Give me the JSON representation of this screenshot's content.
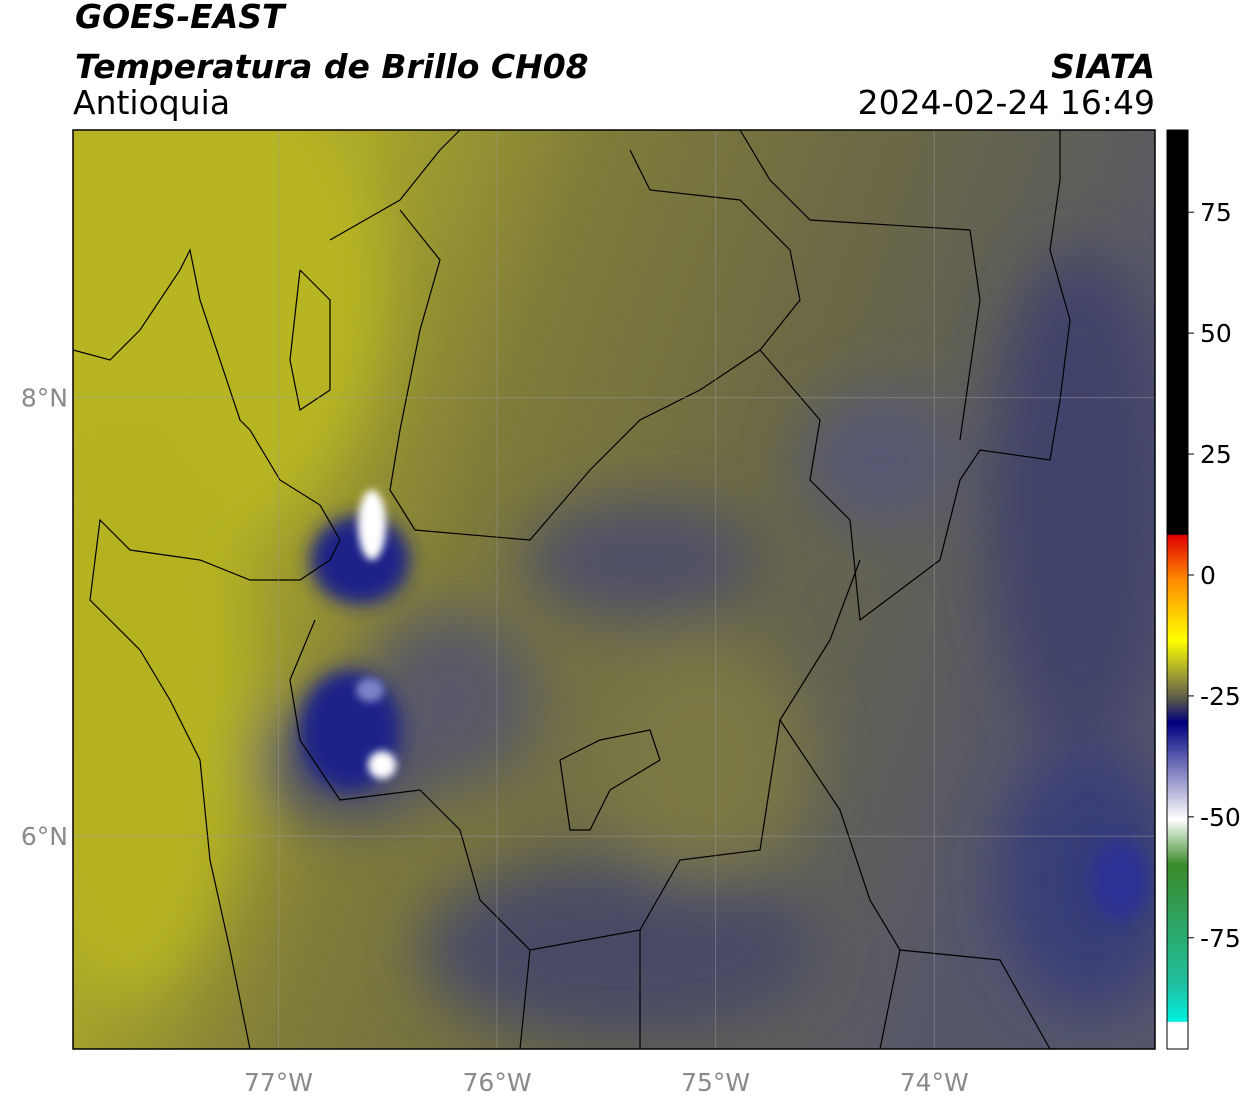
{
  "header": {
    "title": "GOES-EAST",
    "subtitle": "Temperatura de Brillo CH08",
    "region": "Antioquia",
    "source": "SIATA",
    "datetime": "2024-02-24 16:49"
  },
  "map": {
    "lon_range": [
      -77.94,
      -72.99
    ],
    "lat_range": [
      5.03,
      9.22
    ],
    "lon_ticks": [
      {
        "value": -77,
        "label": "77°W"
      },
      {
        "value": -76,
        "label": "76°W"
      },
      {
        "value": -75,
        "label": "75°W"
      },
      {
        "value": -74,
        "label": "74°W"
      }
    ],
    "lat_ticks": [
      {
        "value": 8,
        "label": "8°N"
      },
      {
        "value": 6,
        "label": "6°N"
      }
    ]
  },
  "colorbar": {
    "range": [
      -98,
      92
    ],
    "ticks": [
      75,
      50,
      25,
      0,
      -25,
      -50,
      -75
    ]
  }
}
